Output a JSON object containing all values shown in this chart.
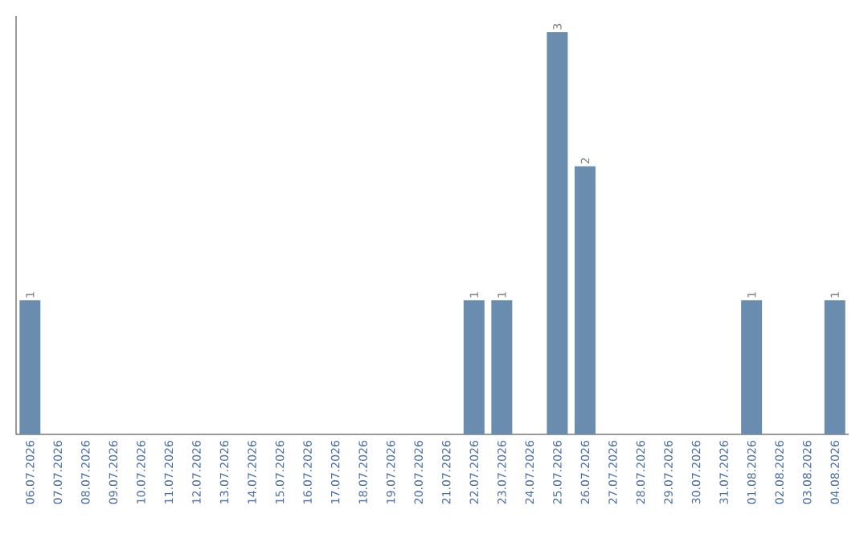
{
  "chart_data": {
    "type": "bar",
    "categories": [
      "06.07.2026",
      "07.07.2026",
      "08.07.2026",
      "09.07.2026",
      "10.07.2026",
      "11.07.2026",
      "12.07.2026",
      "13.07.2026",
      "14.07.2026",
      "15.07.2026",
      "16.07.2026",
      "17.07.2026",
      "18.07.2026",
      "19.07.2026",
      "20.07.2026",
      "21.07.2026",
      "22.07.2026",
      "23.07.2026",
      "24.07.2026",
      "25.07.2026",
      "26.07.2026",
      "27.07.2026",
      "28.07.2026",
      "29.07.2026",
      "30.07.2026",
      "31.07.2026",
      "01.08.2026",
      "02.08.2026",
      "03.08.2026",
      "04.08.2026"
    ],
    "values": [
      1,
      0,
      0,
      0,
      0,
      0,
      0,
      0,
      0,
      0,
      0,
      0,
      0,
      0,
      0,
      0,
      1,
      1,
      0,
      3,
      2,
      0,
      0,
      0,
      0,
      0,
      1,
      0,
      0,
      1
    ],
    "value_labels": [
      "1",
      null,
      null,
      null,
      null,
      null,
      null,
      null,
      null,
      null,
      null,
      null,
      null,
      null,
      null,
      null,
      "1",
      "1",
      null,
      "3",
      "2",
      null,
      null,
      null,
      null,
      null,
      "1",
      null,
      null,
      "1"
    ],
    "color": "#6a8caf",
    "ylim": [
      0,
      3.12
    ],
    "tick_labels": "x"
  }
}
